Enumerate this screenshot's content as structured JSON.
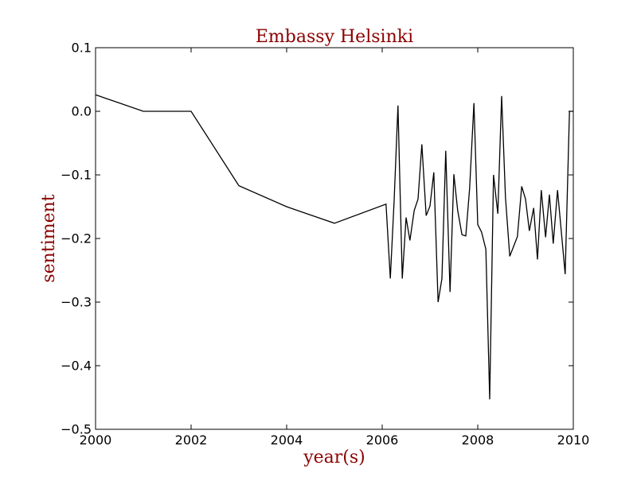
{
  "chart_data": {
    "type": "line",
    "title": "Embassy Helsinki",
    "xlabel": "year(s)",
    "ylabel": "sentiment",
    "xlim": [
      2000,
      2010
    ],
    "ylim": [
      -0.5,
      0.1
    ],
    "xticks": [
      "2000",
      "2002",
      "2004",
      "2006",
      "2008",
      "2010"
    ],
    "yticks": [
      "0.1",
      "0.0",
      "−0.1",
      "−0.2",
      "−0.3",
      "−0.4",
      "−0.5"
    ],
    "grid": false,
    "line_color": "#000000",
    "label_color": "#8b0000",
    "series": [
      {
        "x": [
          2000.0,
          2001.0,
          2002.0,
          2003.0,
          2004.0,
          2005.0,
          2006.08,
          2006.17,
          2006.25,
          2006.33,
          2006.42,
          2006.5,
          2006.58,
          2006.67,
          2006.75,
          2006.83,
          2006.92,
          2007.0,
          2007.08,
          2007.17,
          2007.25,
          2007.33,
          2007.42,
          2007.5,
          2007.58,
          2007.67,
          2007.75,
          2007.83,
          2007.92,
          2008.0,
          2008.08,
          2008.17,
          2008.25,
          2008.33,
          2008.42,
          2008.5,
          2008.58,
          2008.67,
          2008.83,
          2008.92,
          2009.0,
          2009.08,
          2009.17,
          2009.25,
          2009.33,
          2009.42,
          2009.5,
          2009.58,
          2009.67,
          2009.83,
          2009.92,
          2010.0
        ],
        "y": [
          0.026,
          0.0,
          0.0,
          -0.117,
          -0.15,
          -0.176,
          -0.146,
          -0.263,
          -0.14,
          0.009,
          -0.263,
          -0.167,
          -0.203,
          -0.156,
          -0.138,
          -0.052,
          -0.164,
          -0.149,
          -0.096,
          -0.3,
          -0.263,
          -0.062,
          -0.284,
          -0.099,
          -0.156,
          -0.194,
          -0.196,
          -0.121,
          0.013,
          -0.178,
          -0.19,
          -0.217,
          -0.453,
          -0.1,
          -0.161,
          0.024,
          -0.135,
          -0.228,
          -0.197,
          -0.118,
          -0.138,
          -0.188,
          -0.152,
          -0.233,
          -0.124,
          -0.198,
          -0.131,
          -0.208,
          -0.124,
          -0.256,
          0.0,
          0.0
        ]
      }
    ]
  }
}
